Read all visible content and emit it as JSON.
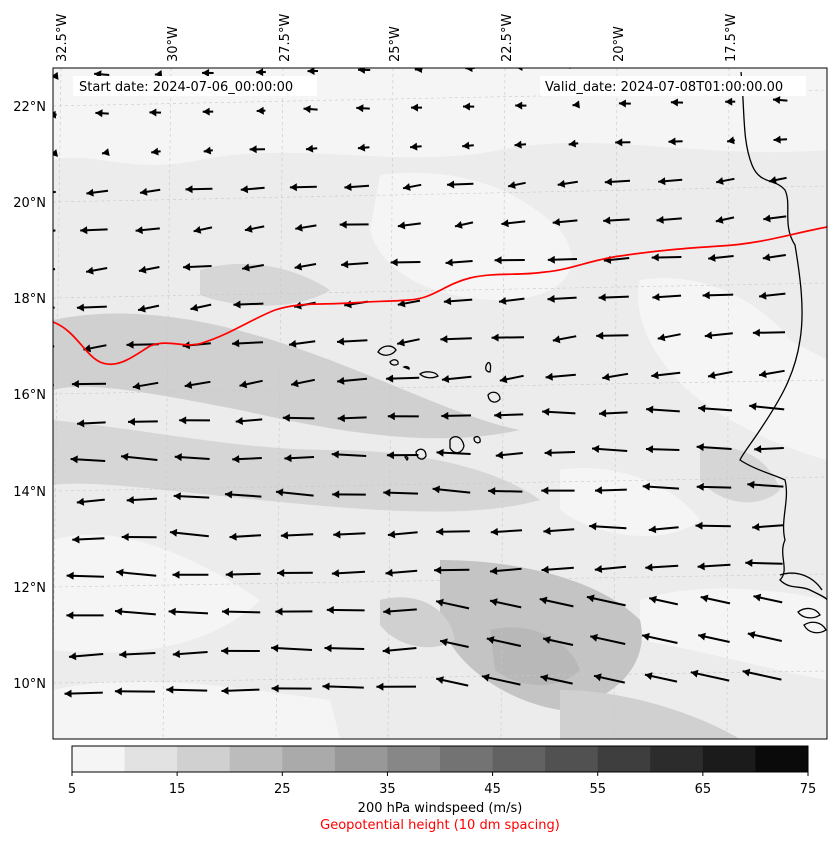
{
  "map": {
    "start_date_label": "Start date: 2024-07-06_00:00:00",
    "valid_date_label": "Valid_date: 2024-07-08T01:00:00.00",
    "lon_labels": [
      "32.5°W",
      "30°W",
      "27.5°W",
      "25°W",
      "22.5°W",
      "20°W",
      "17.5°W"
    ],
    "lat_labels": [
      "22°N",
      "20°N",
      "18°N",
      "16°N",
      "14°N",
      "12°N",
      "10°N"
    ],
    "field_colors": [
      "#f5f5f5",
      "#e2e2e2",
      "#d0d0d0",
      "#bcbcbc",
      "#aaaaaa"
    ],
    "contour_color": "#ff0000",
    "arrow_color": "#000000",
    "coastline_color": "#000000"
  },
  "colorbar": {
    "tick_labels": [
      "5",
      "15",
      "25",
      "35",
      "45",
      "55",
      "65",
      "75"
    ],
    "bin_colors": [
      "#f5f5f5",
      "#e2e2e2",
      "#d0d0d0",
      "#bcbcbc",
      "#aaaaaa",
      "#989898",
      "#878787",
      "#737373",
      "#626262",
      "#515151",
      "#3e3e3e",
      "#2c2c2c",
      "#1b1b1b",
      "#0a0a0a"
    ],
    "title": "200 hPa windspeed (m/s)",
    "subtitle": "Geopotential height (10 dm spacing)"
  }
}
